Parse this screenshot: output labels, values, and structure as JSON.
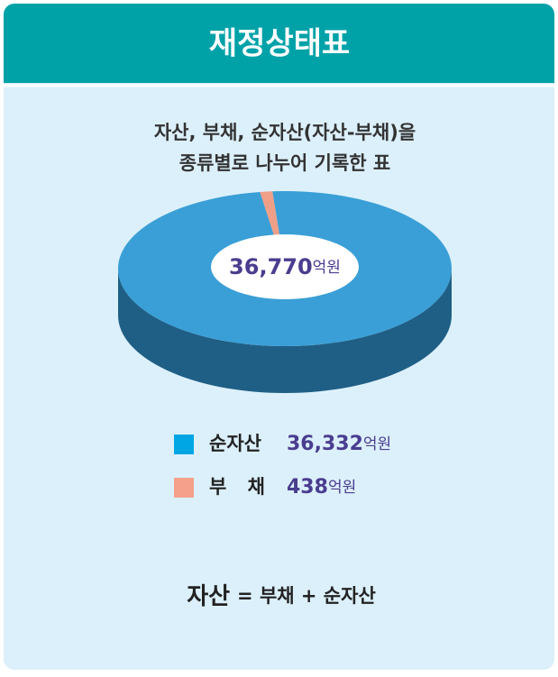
{
  "chart_data": {
    "type": "pie",
    "title": "재정상태표",
    "subtitle": [
      "자산, 부채, 순자산(자산-부채)을",
      "종류별로 나누어 기록한 표"
    ],
    "center_label": "36,770",
    "unit": "억원",
    "categories": [
      "순자산",
      "부 채"
    ],
    "values": [
      36332,
      438
    ],
    "value_labels": [
      "36,332",
      "438"
    ],
    "colors": [
      "#3a9fd6",
      "#ef9f88"
    ],
    "legend_colors": [
      "#00a6e4",
      "#f4a08a"
    ],
    "formula": {
      "lhs": "자산",
      "rhs": "= 부채 + 순자산"
    }
  }
}
